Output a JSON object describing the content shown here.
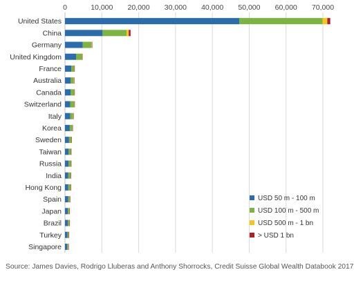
{
  "chart_data": {
    "type": "bar",
    "orientation": "horizontal",
    "stacked": true,
    "categories": [
      "United States",
      "China",
      "Germany",
      "United Kingdom",
      "France",
      "Australia",
      "Canada",
      "Switzerland",
      "Italy",
      "Korea",
      "Sweden",
      "Taiwan",
      "Russia",
      "India",
      "Hong Kong",
      "Spain",
      "Japan",
      "Brazil",
      "Turkey",
      "Singapore"
    ],
    "series": [
      {
        "name": "USD 50 m - 100 m",
        "color": "#2b6cad",
        "values": [
          47300,
          10200,
          4800,
          3000,
          1700,
          1500,
          1500,
          1400,
          1400,
          1300,
          1100,
          1000,
          1000,
          900,
          900,
          900,
          800,
          800,
          700,
          600
        ]
      },
      {
        "name": "USD 100 m - 500 m",
        "color": "#7cb342",
        "values": [
          22600,
          6500,
          2400,
          1600,
          800,
          900,
          1000,
          1100,
          800,
          700,
          600,
          600,
          600,
          600,
          600,
          400,
          400,
          400,
          300,
          300
        ]
      },
      {
        "name": "USD 500 m - 1 bn",
        "color": "#f7c61b",
        "values": [
          1300,
          600,
          100,
          50,
          40,
          40,
          50,
          60,
          40,
          30,
          30,
          30,
          30,
          30,
          30,
          20,
          20,
          20,
          10,
          10
        ]
      },
      {
        "name": "> USD 1 bn",
        "color": "#b0202a",
        "values": [
          800,
          500,
          80,
          40,
          30,
          20,
          30,
          40,
          20,
          20,
          20,
          20,
          20,
          20,
          20,
          10,
          10,
          10,
          10,
          10
        ]
      }
    ],
    "xticks": [
      0,
      10000,
      20000,
      30000,
      40000,
      50000,
      60000,
      70000
    ],
    "xtick_labels": [
      "0",
      "10,000",
      "20,000",
      "30,000",
      "40,000",
      "50,000",
      "60,000",
      "70,000"
    ],
    "xlim": [
      0,
      73000
    ],
    "xaxis_position": "top",
    "grid": "vertical",
    "legend_position": "bottom-right",
    "title": "",
    "xlabel": "",
    "ylabel": ""
  },
  "source_text": "Source: James Davies, Rodrigo Lluberas and Anthony Shorrocks, Credit Suisse Global Wealth Databook 2017"
}
